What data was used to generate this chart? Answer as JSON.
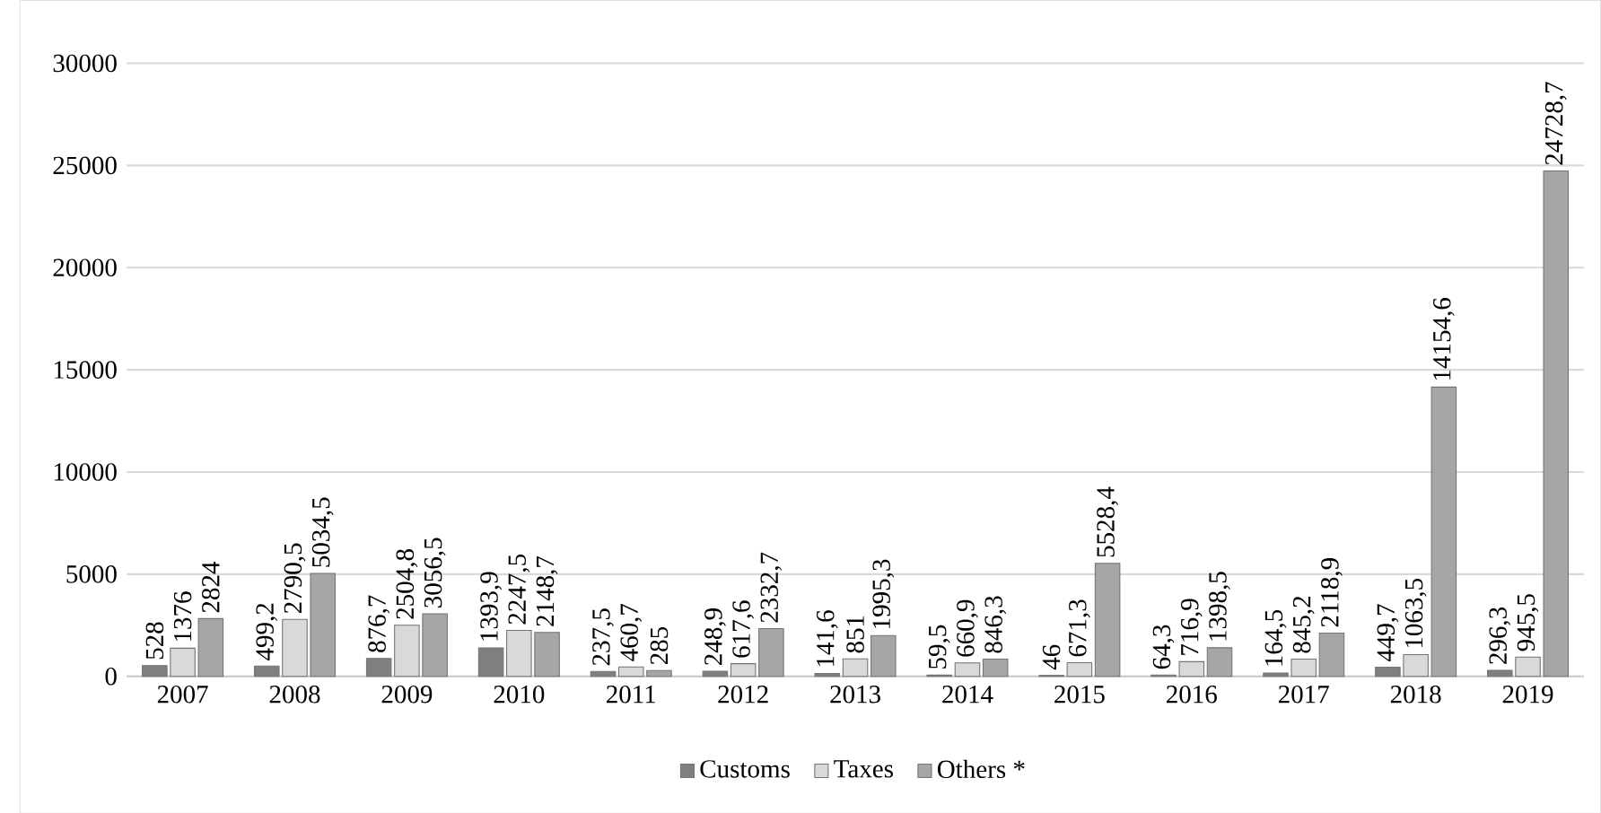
{
  "chart_data": {
    "type": "bar",
    "categories": [
      "2007",
      "2008",
      "2009",
      "2010",
      "2011",
      "2012",
      "2013",
      "2014",
      "2015",
      "2016",
      "2017",
      "2018",
      "2019"
    ],
    "series": [
      {
        "name": "Customs",
        "color": "#7f7f7f",
        "values": [
          528,
          499.2,
          876.7,
          1393.9,
          237.5,
          248.9,
          141.6,
          59.5,
          46,
          64.3,
          164.5,
          449.7,
          296.3
        ],
        "value_labels": [
          "528",
          "499,2",
          "876,7",
          "1393,9",
          "237,5",
          "248,9",
          "141,6",
          "59,5",
          "46",
          "64,3",
          "164,5",
          "449,7",
          "296,3"
        ]
      },
      {
        "name": "Taxes",
        "color": "#d9d9d9",
        "values": [
          1376,
          2790.5,
          2504.8,
          2247.5,
          460.7,
          617.6,
          851,
          660.9,
          671.3,
          716.9,
          845.2,
          1063.5,
          945.5
        ],
        "value_labels": [
          "1376",
          "2790,5",
          "2504,8",
          "2247,5",
          "460,7",
          "617,6",
          "851",
          "660,9",
          "671,3",
          "716,9",
          "845,2",
          "1063,5",
          "945,5"
        ]
      },
      {
        "name": "Others *",
        "color": "#a6a6a6",
        "values": [
          2824,
          5034.5,
          3056.5,
          2148.7,
          285,
          2332.7,
          1995.3,
          846.3,
          5528.4,
          1398.5,
          2118.9,
          14154.6,
          24728.7
        ],
        "value_labels": [
          "2824",
          "5034,5",
          "3056,5",
          "2148,7",
          "285",
          "2332,7",
          "1995,3",
          "846,3",
          "5528,4",
          "1398,5",
          "2118,9",
          "14154,6",
          "24728,7"
        ]
      }
    ],
    "ylim": [
      0,
      30000
    ],
    "yticks": [
      0,
      5000,
      10000,
      15000,
      20000,
      25000,
      30000
    ],
    "grid": "y",
    "legend": "bottom"
  }
}
